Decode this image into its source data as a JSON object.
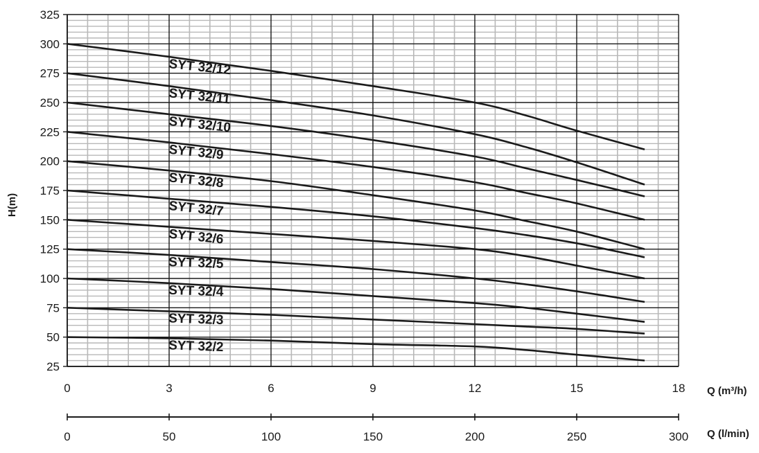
{
  "chart_data": {
    "type": "line",
    "title": "",
    "ylabel": "H(m)",
    "xlabel": "Q (m³/h)",
    "x2label": "Q (l/min)",
    "xlim": [
      0,
      18
    ],
    "ylim": [
      25,
      325
    ],
    "x2lim": [
      0,
      300
    ],
    "x_ticks": [
      0,
      3,
      6,
      9,
      12,
      15,
      18
    ],
    "x_tick_labels": [
      "0",
      "3",
      "6",
      "9",
      "12",
      "15",
      "18"
    ],
    "x2_ticks": [
      0,
      50,
      100,
      150,
      200,
      250,
      300
    ],
    "x2_tick_labels": [
      "0",
      "50",
      "100",
      "150",
      "200",
      "250",
      "300"
    ],
    "y_ticks": [
      25,
      50,
      75,
      100,
      125,
      150,
      175,
      200,
      225,
      250,
      275,
      300,
      325
    ],
    "y_tick_labels": [
      "25",
      "50",
      "75",
      "100",
      "125",
      "150",
      "175",
      "200",
      "225",
      "250",
      "275",
      "300",
      "325"
    ],
    "grid": true,
    "line_color": "#1a1a1a",
    "major_grid_color": "#1a1a1a",
    "minor_grid_color": "#b8b8b8",
    "series": [
      {
        "name": "SYT 32/12",
        "label_bold": false,
        "x": [
          0,
          3,
          6,
          9,
          12,
          13.5,
          15,
          17
        ],
        "y": [
          300,
          289,
          277,
          264,
          250,
          239,
          226,
          210
        ]
      },
      {
        "name": "SYT 32/11",
        "label_bold": false,
        "x": [
          0,
          3,
          6,
          9,
          12,
          13.5,
          15,
          17
        ],
        "y": [
          275,
          264,
          252,
          239,
          223,
          212,
          199,
          180
        ]
      },
      {
        "name": "SYT 32/10",
        "label_bold": false,
        "x": [
          0,
          3,
          6,
          9,
          12,
          13.5,
          15,
          17
        ],
        "y": [
          250,
          240,
          230,
          218,
          204,
          194,
          184,
          170
        ]
      },
      {
        "name": "SYT 32/9",
        "label_bold": false,
        "x": [
          0,
          3,
          6,
          9,
          12,
          13.5,
          15,
          17
        ],
        "y": [
          225,
          216,
          206,
          195,
          182,
          173,
          164,
          150
        ]
      },
      {
        "name": "SYT 32/8",
        "label_bold": false,
        "x": [
          0,
          3,
          6,
          9,
          12,
          13.5,
          15,
          17
        ],
        "y": [
          200,
          192,
          183,
          171,
          158,
          149,
          140,
          125
        ]
      },
      {
        "name": "SYT 32/7",
        "label_bold": false,
        "x": [
          0,
          3,
          6,
          9,
          12,
          13.5,
          15,
          17
        ],
        "y": [
          175,
          168,
          161,
          153,
          143,
          137,
          130,
          118
        ]
      },
      {
        "name": "SYT 32/6",
        "label_bold": false,
        "x": [
          0,
          3,
          6,
          9,
          12,
          13.5,
          15,
          17
        ],
        "y": [
          150,
          144,
          138,
          132,
          125,
          119,
          111,
          100
        ]
      },
      {
        "name": "SYT 32/5",
        "label_bold": true,
        "x": [
          0,
          3,
          6,
          9,
          12,
          13.5,
          15,
          17
        ],
        "y": [
          125,
          120,
          114,
          108,
          100,
          95,
          89,
          80
        ]
      },
      {
        "name": "SYT 32/4",
        "label_bold": true,
        "x": [
          0,
          3,
          6,
          9,
          12,
          13.5,
          15,
          17
        ],
        "y": [
          100,
          96,
          91,
          85,
          79,
          75,
          70,
          63
        ]
      },
      {
        "name": "SYT 32/3",
        "label_bold": true,
        "x": [
          0,
          3,
          6,
          9,
          12,
          13.5,
          15,
          17
        ],
        "y": [
          75,
          72,
          69,
          65,
          61,
          59,
          57,
          53
        ]
      },
      {
        "name": "SYT 32/2",
        "label_bold": true,
        "x": [
          0,
          3,
          6,
          9,
          12,
          13.5,
          15,
          17
        ],
        "y": [
          50,
          49,
          47,
          44,
          42,
          39,
          35,
          30
        ]
      }
    ]
  }
}
